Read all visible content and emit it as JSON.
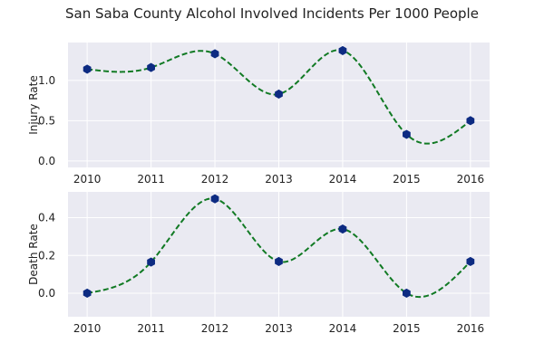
{
  "title": "San Saba County Alcohol Involved Incidents Per 1000 People",
  "colors": {
    "background": "#ffffff",
    "axes_face": "#eaeaf2",
    "grid": "#ffffff",
    "line": "#117a24",
    "marker": "#0d2b82"
  },
  "chart_data": [
    {
      "type": "line",
      "ylabel": "Injury Rate",
      "x": [
        2010,
        2011,
        2012,
        2013,
        2014,
        2015,
        2016
      ],
      "values": [
        1.14,
        1.16,
        1.33,
        0.83,
        1.37,
        0.33,
        0.5
      ],
      "xlim": [
        2009.7,
        2016.3
      ],
      "ylim": [
        -0.08,
        1.47
      ],
      "yticks": [
        0.0,
        0.5,
        1.0
      ],
      "ytick_labels": [
        "0.0",
        "0.5",
        "1.0"
      ],
      "xtick_labels": [
        "2010",
        "2011",
        "2012",
        "2013",
        "2014",
        "2015",
        "2016"
      ],
      "grid": true,
      "curve": "smoothed spline, dashed",
      "marker": "hexagon"
    },
    {
      "type": "line",
      "ylabel": "Death Rate",
      "x": [
        2010,
        2011,
        2012,
        2013,
        2014,
        2015,
        2016
      ],
      "values": [
        0.0,
        0.165,
        0.5,
        0.168,
        0.34,
        0.0,
        0.168
      ],
      "xlim": [
        2009.7,
        2016.3
      ],
      "ylim": [
        -0.125,
        0.537
      ],
      "yticks": [
        0.0,
        0.2,
        0.4
      ],
      "ytick_labels": [
        "0.0",
        "0.2",
        "0.4"
      ],
      "xtick_labels": [
        "2010",
        "2011",
        "2012",
        "2013",
        "2014",
        "2015",
        "2016"
      ],
      "grid": true,
      "curve": "smoothed spline, dashed",
      "marker": "hexagon"
    }
  ]
}
